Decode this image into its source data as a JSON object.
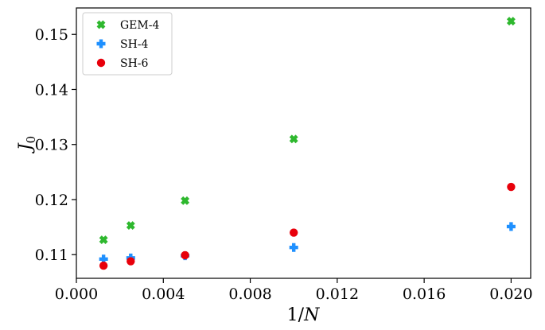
{
  "chart_data": {
    "type": "scatter",
    "xlabel": "1/N",
    "ylabel": "J0",
    "xlim": [
      0.0,
      0.0209
    ],
    "ylim": [
      0.1057,
      0.1548
    ],
    "x_ticks": [
      0.0,
      0.004,
      0.008,
      0.012,
      0.016,
      0.02
    ],
    "x_tick_labels": [
      "0.000",
      "0.004",
      "0.008",
      "0.012",
      "0.016",
      "0.020"
    ],
    "y_ticks": [
      0.11,
      0.12,
      0.13,
      0.14,
      0.15
    ],
    "y_tick_labels": [
      "0.11",
      "0.12",
      "0.13",
      "0.14",
      "0.15"
    ],
    "grid": false,
    "legend_position": "top-left",
    "series": [
      {
        "name": "GEM-4",
        "marker": "x-filled",
        "color": "#2eb82e",
        "x": [
          0.00125,
          0.0025,
          0.005,
          0.01,
          0.02
        ],
        "y": [
          0.1127,
          0.1153,
          0.1198,
          0.131,
          0.1524
        ]
      },
      {
        "name": "SH-4",
        "marker": "plus-filled",
        "color": "#1e90ff",
        "x": [
          0.00125,
          0.0025,
          0.005,
          0.01,
          0.02
        ],
        "y": [
          0.1092,
          0.1094,
          0.1098,
          0.1113,
          0.1151
        ]
      },
      {
        "name": "SH-6",
        "marker": "circle",
        "color": "#e8000b",
        "x": [
          0.00125,
          0.0025,
          0.005,
          0.01,
          0.02
        ],
        "y": [
          0.108,
          0.1088,
          0.1099,
          0.114,
          0.1223
        ]
      }
    ]
  }
}
